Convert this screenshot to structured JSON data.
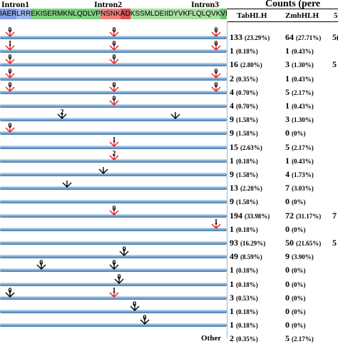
{
  "header": {
    "intron_labels": [
      "Intron1",
      "Intron2",
      "Intron3"
    ],
    "counts_title": "Counts (pere",
    "columns": [
      "TabHLH",
      "ZmbHLH"
    ],
    "third_col_fragment": "5"
  },
  "sequence": {
    "segments": [
      {
        "text": "IAER",
        "color": "#7e9ee0"
      },
      {
        "text": "LRR",
        "color": "#a0b8f0"
      },
      {
        "text": "EKISERMKNLQDLVP",
        "color": "#7ed07e"
      },
      {
        "text": "NSNK",
        "color": "#f08080"
      },
      {
        "text": "AD",
        "color": "#e05050"
      },
      {
        "text": "KSSMLDEIIDYVKFLQLQVK",
        "color": "#a6dfa0"
      },
      {
        "text": "VL",
        "color": "#6cc070"
      }
    ]
  },
  "rows": [
    {
      "marks": [
        {
          "pos": 1,
          "phase": "0",
          "color": "red"
        },
        {
          "pos": 2,
          "phase": "0",
          "color": "red"
        },
        {
          "pos": 3,
          "phase": "0",
          "color": "red"
        }
      ],
      "ta": "133",
      "ta_pct": "(23.29%)",
      "zm": "64",
      "zm_pct": "(27.71%)",
      "extra": "5("
    },
    {
      "marks": [
        {
          "pos": 1,
          "phase": "1",
          "color": "red"
        },
        {
          "pos": 2,
          "phase": "0",
          "color": "red"
        },
        {
          "pos": 3,
          "phase": "0",
          "color": "red"
        }
      ],
      "ta": "1",
      "ta_pct": "(0.18%)",
      "zm": "1",
      "zm_pct": "(0.43%)",
      "extra": ""
    },
    {
      "marks": [
        {
          "pos": 1,
          "phase": "0",
          "color": "red"
        },
        {
          "pos": 2,
          "phase": "0",
          "color": "red"
        }
      ],
      "ta": "16",
      "ta_pct": "(2.80%)",
      "zm": "3",
      "zm_pct": "(1.30%)",
      "extra": "5"
    },
    {
      "marks": [
        {
          "pos": 1,
          "phase": "0",
          "color": "red"
        },
        {
          "pos": 3,
          "phase": "0",
          "color": "red"
        }
      ],
      "ta": "2",
      "ta_pct": "(0.35%)",
      "zm": "1",
      "zm_pct": "(0.43%)",
      "extra": ""
    },
    {
      "marks": [
        {
          "pos": 1,
          "phase": "0",
          "color": "red"
        },
        {
          "pos": 2,
          "phase": "0",
          "color": "red"
        },
        {
          "pos": 3,
          "phase": "0",
          "color": "red"
        }
      ],
      "ta": "4",
      "ta_pct": "(0.70%)",
      "zm": "5",
      "zm_pct": "(2.17%)",
      "extra": ""
    },
    {
      "marks": [
        {
          "pos": 2,
          "phase": "0",
          "color": "red"
        }
      ],
      "ta": "4",
      "ta_pct": "(0.70%)",
      "zm": "1",
      "zm_pct": "(0.43%)",
      "extra": ""
    },
    {
      "marks": [
        {
          "pos": "1.5",
          "phase": "2",
          "color": "black"
        },
        {
          "pos": "2.6",
          "phase": "",
          "color": "black"
        }
      ],
      "ta": "9",
      "ta_pct": "(1.58%)",
      "zm": "3",
      "zm_pct": "(1.30%)",
      "extra": ""
    },
    {
      "marks": [
        {
          "pos": 1,
          "phase": "0",
          "color": "red"
        }
      ],
      "ta": "9",
      "ta_pct": "(1.58%)",
      "zm": "0",
      "zm_pct": "(0%)",
      "extra": ""
    },
    {
      "marks": [
        {
          "pos": 2,
          "phase": "1",
          "color": "red"
        }
      ],
      "ta": "15",
      "ta_pct": "(2.63%)",
      "zm": "5",
      "zm_pct": "(2.17%)",
      "extra": ""
    },
    {
      "marks": [
        {
          "pos": 2,
          "phase": "2",
          "color": "red"
        }
      ],
      "ta": "1",
      "ta_pct": "(0.18%)",
      "zm": "1",
      "zm_pct": "(0.43%)",
      "extra": ""
    },
    {
      "marks": [
        {
          "pos": "1.9",
          "phase": "",
          "color": "black"
        }
      ],
      "ta": "9",
      "ta_pct": "(1.58%)",
      "zm": "4",
      "zm_pct": "(1.73%)",
      "extra": ""
    },
    {
      "marks": [
        {
          "pos": "1.55",
          "phase": "",
          "color": "black"
        }
      ],
      "ta": "13",
      "ta_pct": "(2.28%)",
      "zm": "7",
      "zm_pct": "(3.03%)",
      "extra": ""
    },
    {
      "marks": [],
      "ta": "9",
      "ta_pct": "(1.58%)",
      "zm": "0",
      "zm_pct": "(0%)",
      "extra": ""
    },
    {
      "marks": [
        {
          "pos": 2,
          "phase": "0",
          "color": "red"
        }
      ],
      "ta": "194",
      "ta_pct": "(33.98%)",
      "zm": "72",
      "zm_pct": "(31.17%)",
      "extra": "7"
    },
    {
      "marks": [
        {
          "pos": 3,
          "phase": "1",
          "color": "red"
        }
      ],
      "ta": "1",
      "ta_pct": "(0.18%)",
      "zm": "0",
      "zm_pct": "(0%)",
      "extra": ""
    },
    {
      "marks": [],
      "ta": "93",
      "ta_pct": "(16.29%)",
      "zm": "50",
      "zm_pct": "(21.65%)",
      "extra": "5"
    },
    {
      "marks": [
        {
          "pos": "2.1",
          "phase": "0",
          "color": "black"
        }
      ],
      "ta": "49",
      "ta_pct": "(8.59%)",
      "zm": "9",
      "zm_pct": "(3.90%)",
      "extra": ""
    },
    {
      "marks": [
        {
          "pos": "1.3",
          "phase": "0",
          "color": "black"
        },
        {
          "pos": "2.0",
          "phase": "0",
          "color": "black"
        }
      ],
      "ta": "1",
      "ta_pct": "(0.18%)",
      "zm": "0",
      "zm_pct": "(0%)",
      "extra": ""
    },
    {
      "marks": [
        {
          "pos": "2.05",
          "phase": "0",
          "color": "black"
        }
      ],
      "ta": "1",
      "ta_pct": "(0.18%)",
      "zm": "0",
      "zm_pct": "(0%)",
      "extra": ""
    },
    {
      "marks": [
        {
          "pos": "1.0",
          "phase": "0",
          "color": "black"
        },
        {
          "pos": 2,
          "phase": "1",
          "color": "red"
        }
      ],
      "ta": "3",
      "ta_pct": "(0.53%)",
      "zm": "0",
      "zm_pct": "(0%)",
      "extra": ""
    },
    {
      "marks": [
        {
          "pos": "2.2",
          "phase": "0",
          "color": "black"
        }
      ],
      "ta": "1",
      "ta_pct": "(0.18%)",
      "zm": "0",
      "zm_pct": "(0%)",
      "extra": ""
    },
    {
      "marks": [
        {
          "pos": "2.3",
          "phase": "0",
          "color": "black"
        }
      ],
      "ta": "1",
      "ta_pct": "(0.18%)",
      "zm": "0",
      "zm_pct": "(0%)",
      "extra": ""
    }
  ],
  "other_row": {
    "label": "Other",
    "ta": "2",
    "ta_pct": "(0.35%)",
    "zm": "5",
    "zm_pct": "(2.17%)"
  }
}
